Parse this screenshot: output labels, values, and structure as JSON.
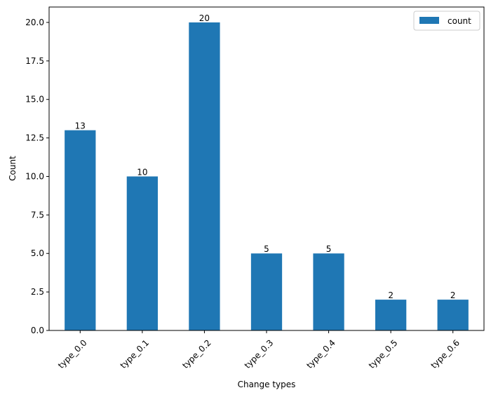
{
  "chart_data": {
    "type": "bar",
    "categories": [
      "type_0.0",
      "type_0.1",
      "type_0.2",
      "type_0.3",
      "type_0.4",
      "type_0.5",
      "type_0.6"
    ],
    "series": [
      {
        "name": "count",
        "values": [
          13,
          10,
          20,
          5,
          5,
          2,
          2
        ],
        "color": "#1f77b4"
      }
    ],
    "data_labels": [
      "13",
      "10",
      "20",
      "5",
      "5",
      "2",
      "2"
    ],
    "xlabel": "Change types",
    "ylabel": "Count",
    "ylim": [
      0,
      21
    ],
    "yticks": [
      0.0,
      2.5,
      5.0,
      7.5,
      10.0,
      12.5,
      15.0,
      17.5,
      20.0
    ],
    "ytick_labels": [
      "0.0",
      "2.5",
      "5.0",
      "7.5",
      "10.0",
      "12.5",
      "15.0",
      "17.5",
      "20.0"
    ],
    "grid": false,
    "legend": {
      "position": "top-right",
      "entries": [
        "count"
      ]
    }
  }
}
